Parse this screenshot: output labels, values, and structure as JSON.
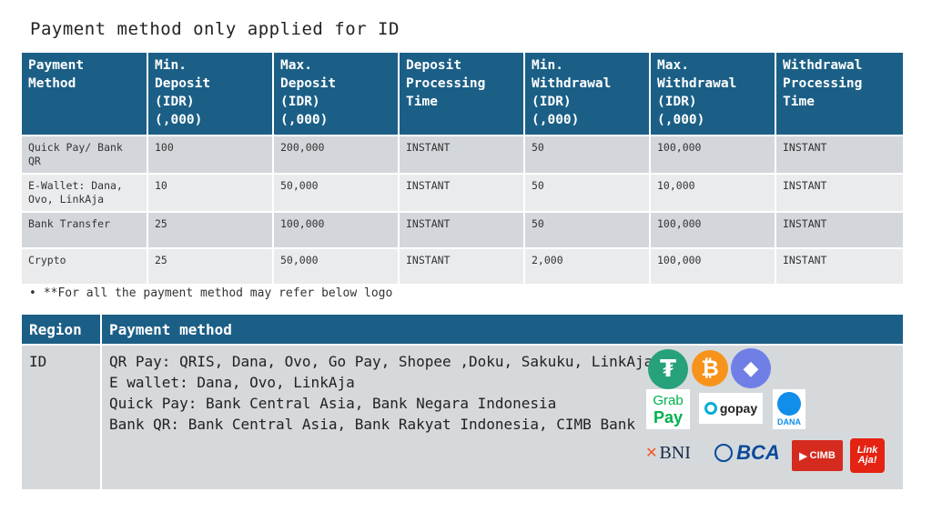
{
  "title": "Payment method only applied for ID",
  "rates_table": {
    "headers": [
      "Payment\nMethod",
      "Min.\nDeposit\n(IDR)\n(,000)",
      "Max.\nDeposit\n(IDR)\n(,000)",
      "Deposit\nProcessing\nTime",
      "Min.\nWithdrawal\n(IDR)\n(,000)",
      "Max.\nWithdrawal\n(IDR)\n(,000)",
      "Withdrawal\nProcessing\nTime"
    ],
    "rows": [
      [
        "Quick Pay/ Bank QR",
        "100",
        "200,000",
        "INSTANT",
        "50",
        "100,000",
        "INSTANT"
      ],
      [
        "E-Wallet: Dana, Ovo, LinkAja",
        "10",
        "50,000",
        "INSTANT",
        "50",
        "10,000",
        "INSTANT"
      ],
      [
        "Bank Transfer",
        "25",
        "100,000",
        "INSTANT",
        "50",
        "100,000",
        "INSTANT"
      ],
      [
        "Crypto",
        "25",
        "50,000",
        "INSTANT",
        "2,000",
        "100,000",
        "INSTANT"
      ]
    ]
  },
  "note": {
    "bullet": "•",
    "text": "**For all the payment method may refer below logo"
  },
  "region_table": {
    "headers": [
      "Region",
      "Payment method"
    ],
    "region": "ID",
    "lines": [
      "QR Pay: QRIS, Dana, Ovo, Go Pay, Shopee ,Doku, Sakuku, LinkAja",
      "E wallet: Dana, Ovo, LinkAja",
      "Quick Pay: Bank Central Asia, Bank Negara Indonesia",
      "Bank QR: Bank Central Asia, Bank Rakyat Indonesia, CIMB Bank"
    ]
  },
  "logos": {
    "tether": "₮",
    "bitcoin": "₿",
    "ethereum": "◆",
    "grab_top": "Grab",
    "grab_bottom": "Pay",
    "gopay": "gopay",
    "dana": "DANA",
    "bni": "BNI",
    "bca": "BCA",
    "cimb": "CIMB",
    "linkaja": "Link Aja!"
  },
  "colors": {
    "header_bg": "#1b5f86",
    "row_dark": "#d3d7db",
    "row_light": "#e9ebed"
  }
}
